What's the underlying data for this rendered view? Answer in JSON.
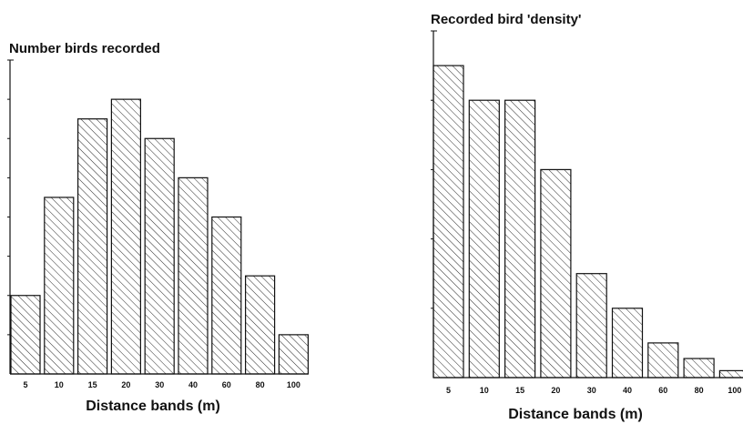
{
  "chart_data": [
    {
      "type": "bar",
      "title": "Number birds recorded",
      "xlabel": "Distance bands (m)",
      "ylabel": "",
      "categories": [
        "5",
        "10",
        "15",
        "20",
        "30",
        "40",
        "60",
        "80",
        "100"
      ],
      "values": [
        2,
        4.5,
        6.5,
        7,
        6,
        5,
        4,
        2.5,
        1
      ],
      "ylim": [
        0,
        8
      ],
      "y_ticks_labeled": false,
      "bar_fill": "diagonal hatch",
      "grid": false
    },
    {
      "type": "bar",
      "title": "Recorded bird 'density'",
      "xlabel": "Distance bands (m)",
      "ylabel": "",
      "categories": [
        "5",
        "10",
        "15",
        "20",
        "30",
        "40",
        "60",
        "80",
        "100"
      ],
      "values": [
        9,
        8,
        8,
        6,
        3,
        2,
        1,
        0.55,
        0.2
      ],
      "ylim": [
        0,
        10
      ],
      "y_ticks_labeled": false,
      "bar_fill": "diagonal hatch",
      "grid": false
    }
  ],
  "colors": {
    "ink": "#111111",
    "background": "#ffffff"
  }
}
